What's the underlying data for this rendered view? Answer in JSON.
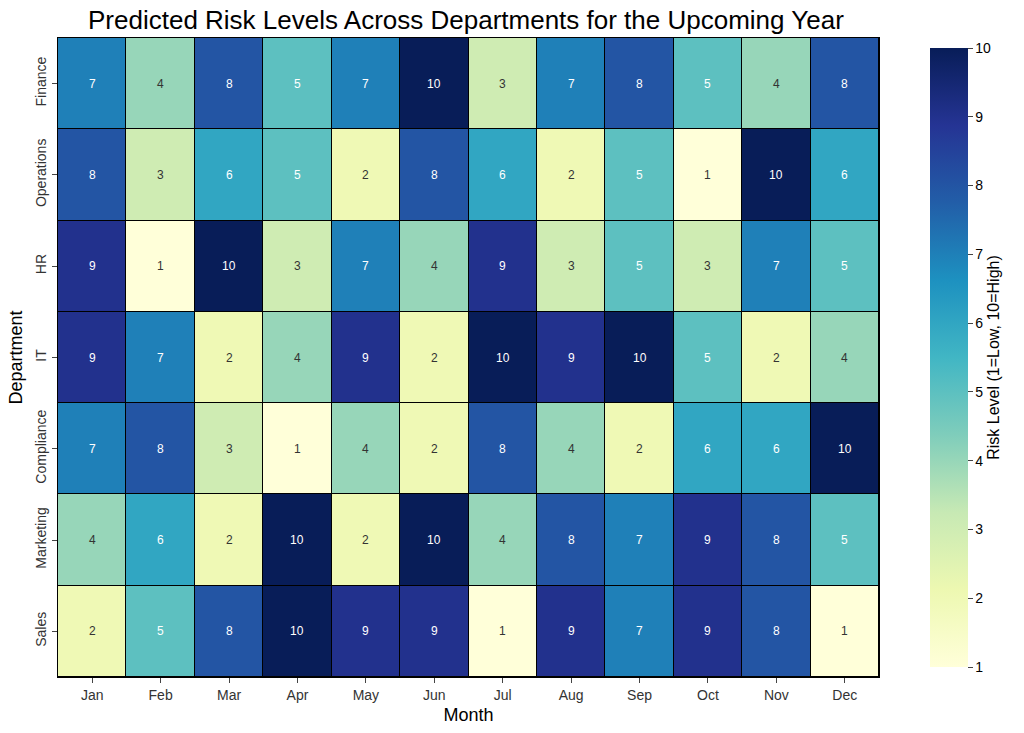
{
  "chart_data": {
    "type": "heatmap",
    "title": "Predicted Risk Levels Across Departments for the Upcoming Year",
    "x_label": "Month",
    "y_label": "Department",
    "categories": [
      "Jan",
      "Feb",
      "Mar",
      "Apr",
      "May",
      "Jun",
      "Jul",
      "Aug",
      "Sep",
      "Oct",
      "Nov",
      "Dec"
    ],
    "rows": [
      "Finance",
      "Operations",
      "HR",
      "IT",
      "Compliance",
      "Marketing",
      "Sales"
    ],
    "cells": [
      [
        7,
        4,
        8,
        5,
        7,
        10,
        3,
        7,
        8,
        5,
        4,
        8
      ],
      [
        8,
        3,
        6,
        5,
        2,
        8,
        6,
        2,
        5,
        1,
        10,
        6
      ],
      [
        9,
        1,
        10,
        3,
        7,
        4,
        9,
        3,
        5,
        3,
        7,
        5
      ],
      [
        9,
        7,
        2,
        4,
        9,
        2,
        10,
        9,
        10,
        5,
        2,
        4
      ],
      [
        7,
        8,
        3,
        1,
        4,
        2,
        8,
        4,
        2,
        6,
        6,
        10
      ],
      [
        4,
        6,
        2,
        10,
        2,
        10,
        4,
        8,
        7,
        9,
        8,
        5
      ],
      [
        2,
        5,
        8,
        10,
        9,
        9,
        1,
        9,
        7,
        9,
        8,
        1
      ]
    ],
    "colorbar_label": "Risk Level (1=Low, 10=High)",
    "zlim": [
      1,
      10
    ],
    "zticks": [
      1,
      2,
      3,
      4,
      5,
      6,
      7,
      8,
      9,
      10
    ],
    "data_labels": true
  }
}
